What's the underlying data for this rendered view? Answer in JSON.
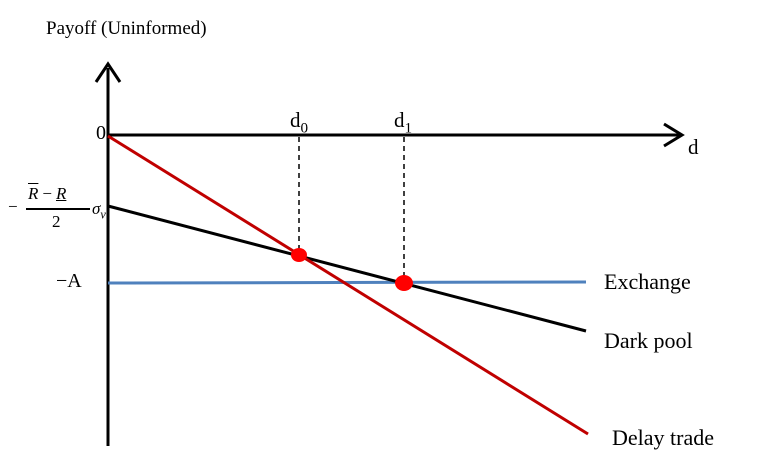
{
  "diagram": {
    "y_axis_label": "Payoff (Uninformed)",
    "x_axis_label": "d",
    "y_tick_zero": "0",
    "y_tick_negA": "−A",
    "y_tick_frac": {
      "minus": "−",
      "R_bar": "R",
      "op": "−",
      "R_under": "R",
      "denominator": "2",
      "sigma": "σ",
      "sigma_sub": "v"
    },
    "d0": {
      "base": "d",
      "sub": "0"
    },
    "d1": {
      "base": "d",
      "sub": "1"
    },
    "legend": {
      "exchange": "Exchange",
      "dark_pool": "Dark pool",
      "delay_trade": "Delay trade"
    },
    "colors": {
      "exchange": "#4f81bd",
      "dark_pool": "#000000",
      "delay_trade": "#c00000",
      "intersection": "#ff0000"
    }
  }
}
